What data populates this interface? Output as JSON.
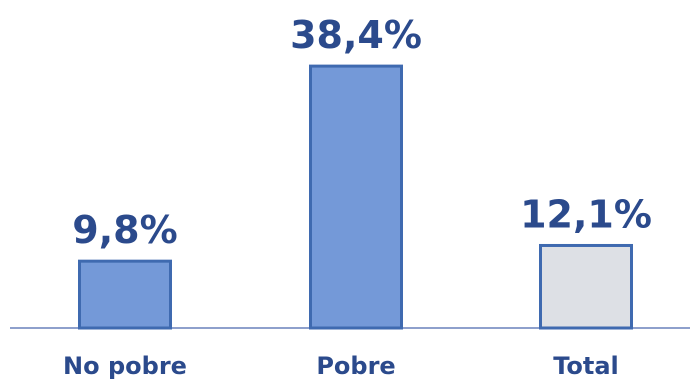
{
  "chart_data": {
    "type": "bar",
    "categories": [
      "No pobre",
      "Pobre",
      "Total"
    ],
    "values": [
      9.8,
      38.4,
      12.1
    ],
    "value_labels": [
      "9,8%",
      "38,4%",
      "12,1%"
    ],
    "ylim": [
      0,
      40
    ],
    "grid": false,
    "legend": "none",
    "colors": {
      "bars": [
        "#7499D8",
        "#7499D8",
        "#DDE0E5"
      ],
      "bar_outline": "#3F6AB0",
      "text": "#2B4A8C",
      "axis": "#8EA0CC"
    }
  }
}
